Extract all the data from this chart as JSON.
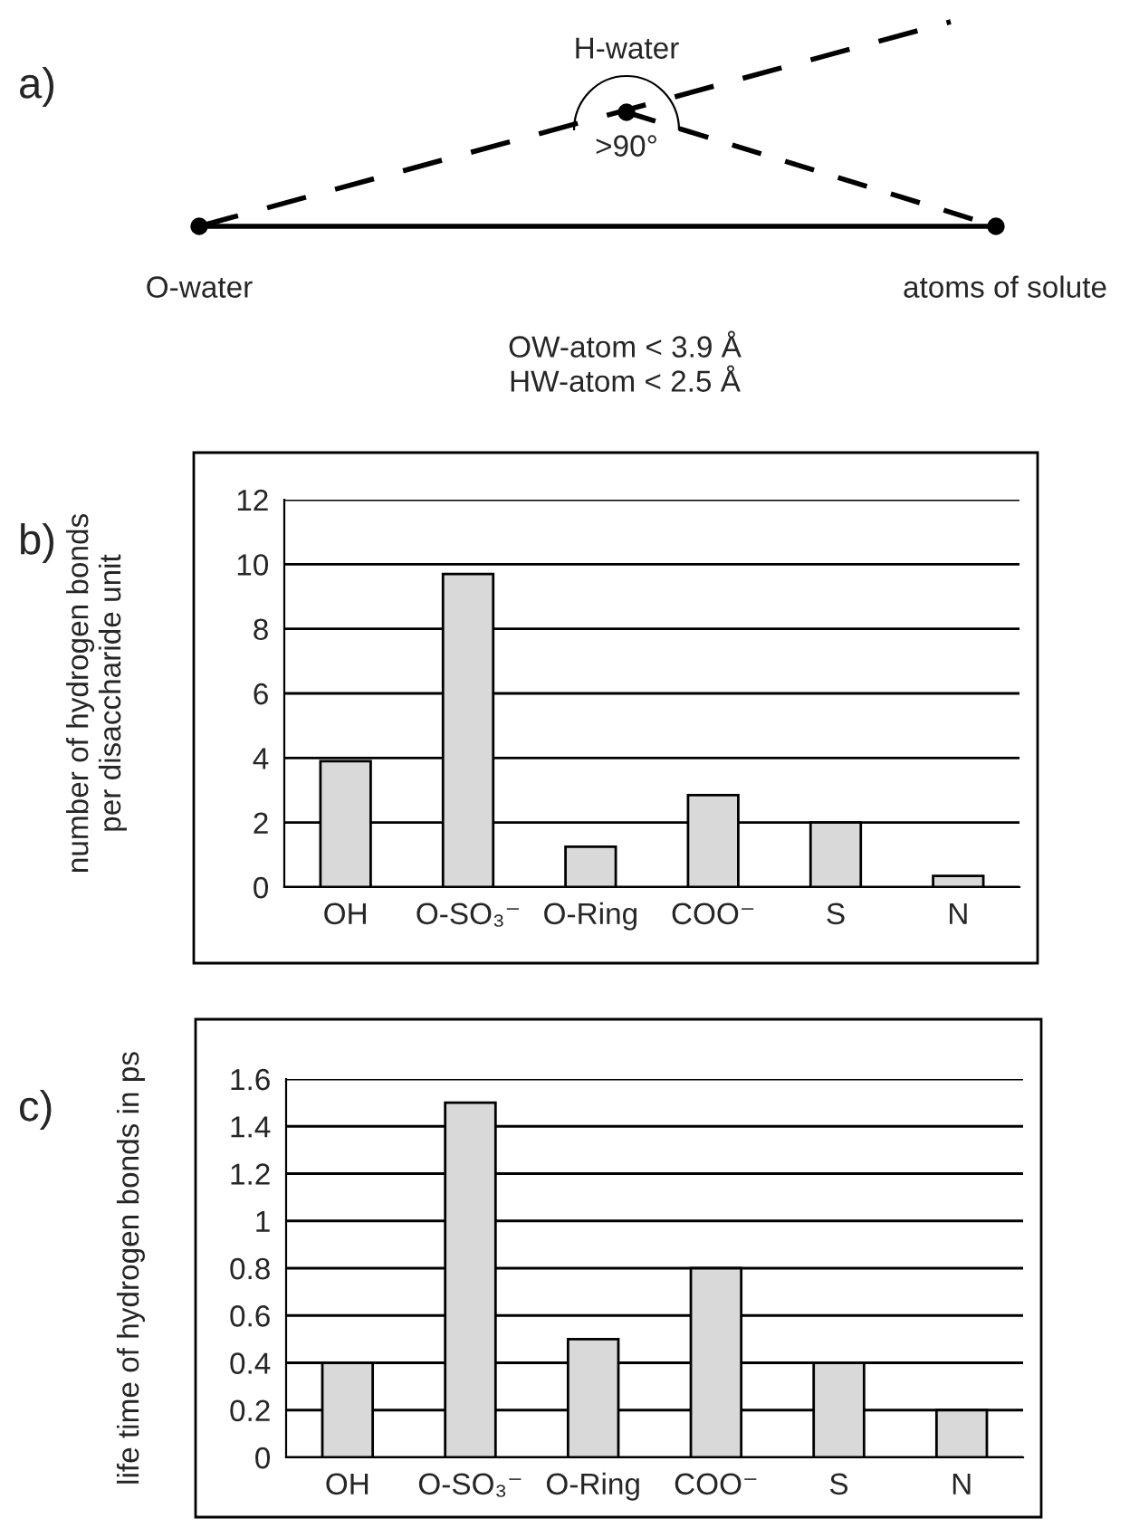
{
  "chart_data": [
    {
      "type": "other",
      "annotations": [
        "a)",
        "H-water",
        ">90°",
        "O-water",
        "atoms of solute",
        "OW-atom < 3.9 Å",
        "HW-atom < 2.5 Å"
      ]
    },
    {
      "type": "bar",
      "ylabel": "number of hydrogen bonds\nper disaccharide unit",
      "categories": [
        "OH",
        "O-SO₃⁻",
        "O-Ring",
        "COO⁻",
        "S",
        "N"
      ],
      "values": [
        3.9,
        9.7,
        1.25,
        2.85,
        2.0,
        0.35
      ],
      "color": "#d9d9d9",
      "ylim": [
        0,
        12
      ],
      "yticks": [
        0,
        2,
        4,
        6,
        8,
        10,
        12
      ],
      "grid": "y",
      "annotations": [
        "b)"
      ]
    },
    {
      "type": "bar",
      "ylabel": "life time of hydrogen bonds in ps",
      "categories": [
        "OH",
        "O-SO₃⁻",
        "O-Ring",
        "COO⁻",
        "S",
        "N"
      ],
      "values": [
        0.4,
        1.5,
        0.5,
        0.8,
        0.4,
        0.2
      ],
      "color": "#d9d9d9",
      "ylim": [
        0,
        1.6
      ],
      "yticks": [
        0,
        0.2,
        0.4,
        0.6,
        0.8,
        1,
        1.2,
        1.4,
        1.6
      ],
      "grid": "y",
      "annotations": [
        "c)"
      ]
    }
  ]
}
